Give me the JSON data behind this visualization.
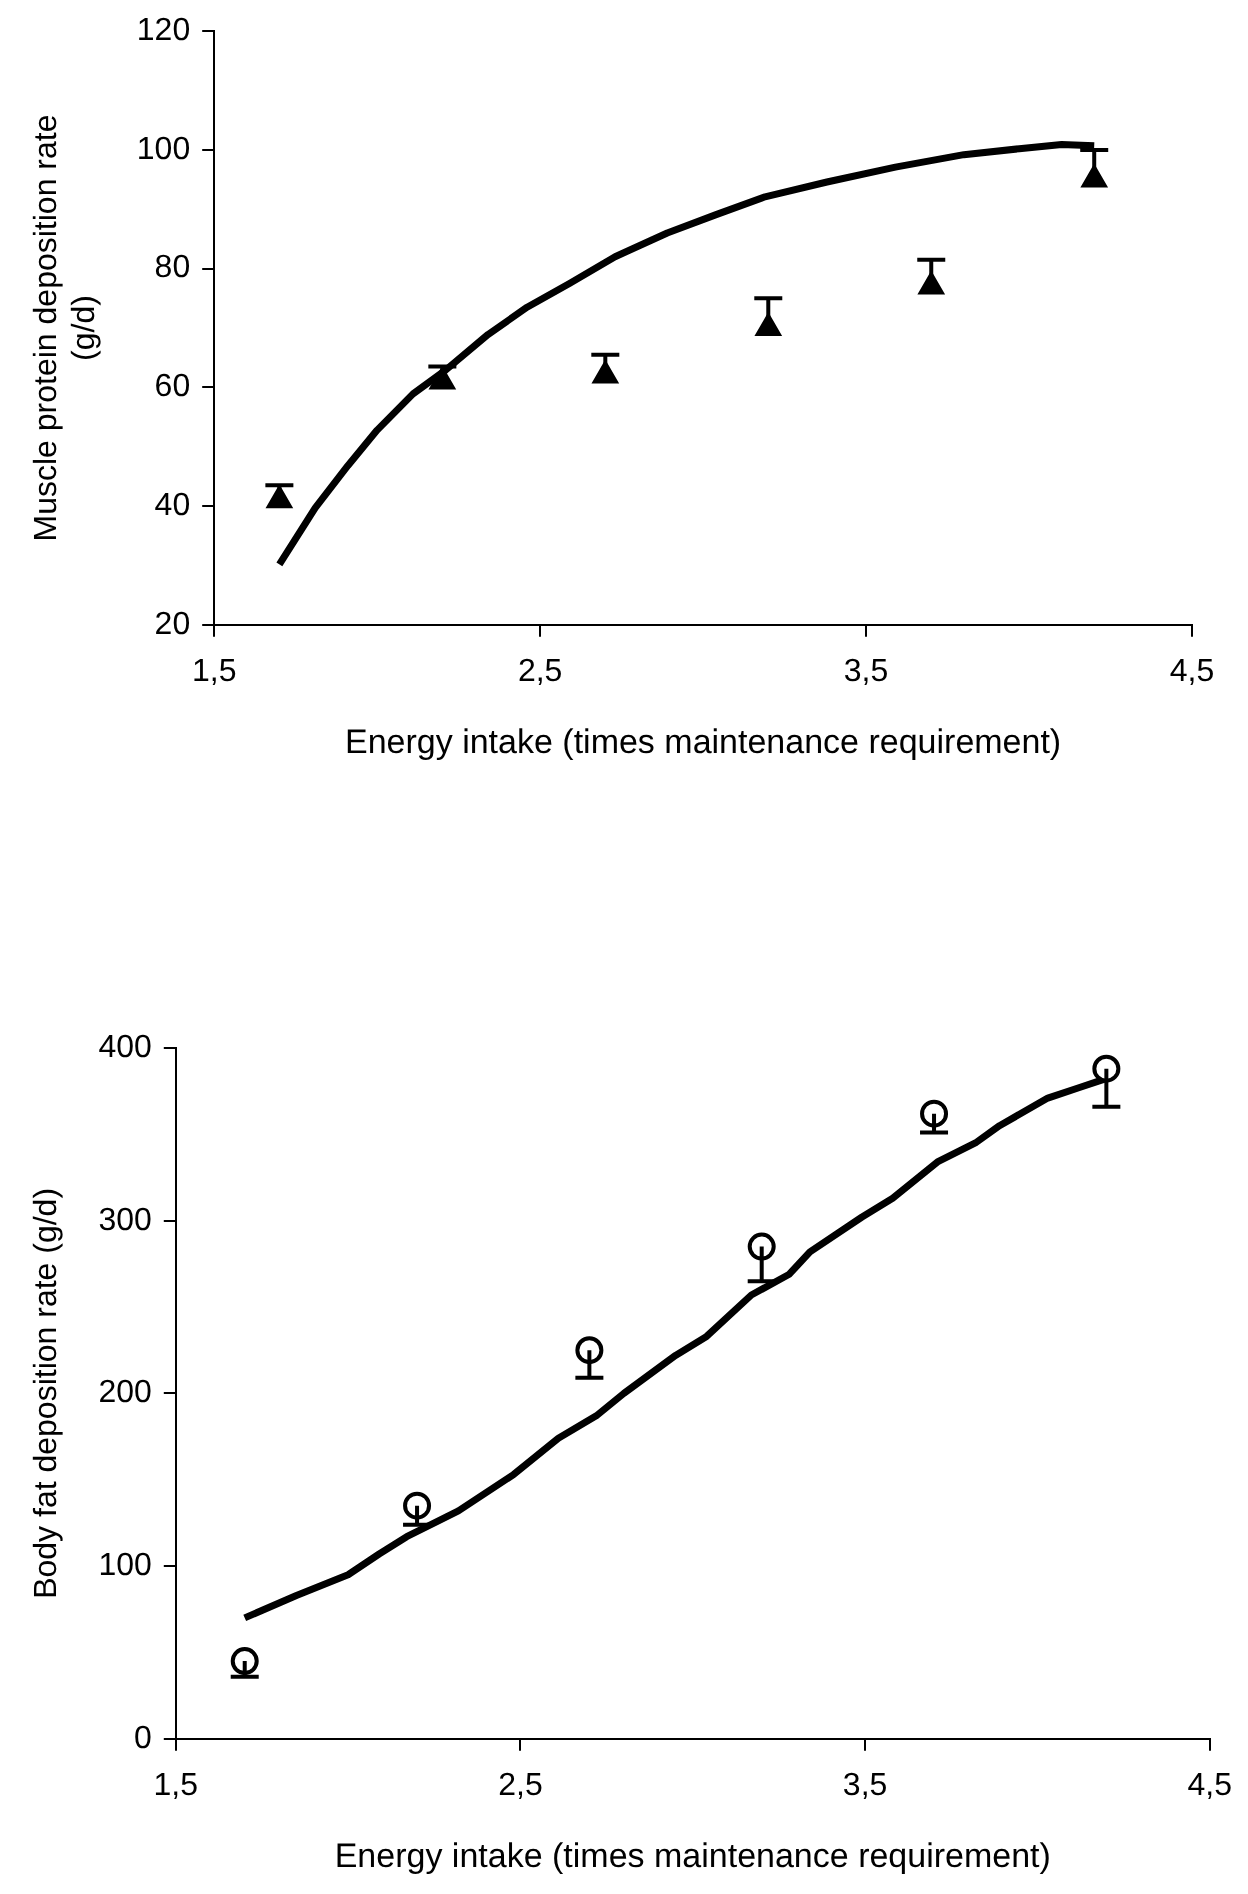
{
  "chart_data": [
    {
      "type": "line",
      "xlabel": "Energy intake (times maintenance requirement)",
      "ylabel": "Muscle protein deposition rate\n(g/d)",
      "xlim": [
        1.5,
        4.5
      ],
      "xticks": [
        {
          "value": 1.5,
          "label": "1,5"
        },
        {
          "value": 2.5,
          "label": "2,5"
        },
        {
          "value": 3.5,
          "label": "3,5"
        },
        {
          "value": 4.5,
          "label": "4,5"
        }
      ],
      "ylim": [
        20,
        120
      ],
      "yticks": [
        20,
        40,
        60,
        80,
        100,
        120
      ],
      "grid": false,
      "legend": false,
      "series": [
        {
          "type": "line",
          "color": "#000000",
          "marker": "none",
          "x": [
            1.7,
            1.81,
            1.91,
            2.0,
            2.11,
            2.21,
            2.34,
            2.46,
            2.59,
            2.73,
            2.89,
            3.04,
            3.19,
            3.38,
            3.59,
            3.8,
            3.97,
            4.1,
            4.2
          ],
          "values": [
            30.2,
            39.7,
            46.8,
            52.8,
            58.9,
            62.9,
            68.9,
            73.5,
            77.5,
            82.0,
            86.0,
            89.1,
            92.1,
            94.6,
            97.1,
            99.2,
            100.2,
            100.9,
            100.7
          ]
        },
        {
          "type": "scatter",
          "color": "#000000",
          "marker": "triangle",
          "x": [
            1.7,
            2.2,
            2.7,
            3.2,
            3.7,
            4.2
          ],
          "values": [
            41,
            61,
            62,
            70,
            77,
            95
          ],
          "errors": [
            [
              41,
              43.5
            ],
            [
              61,
              63.5
            ],
            [
              62,
              65.5
            ],
            [
              70,
              75
            ],
            [
              77,
              81.5
            ],
            [
              95,
              100
            ]
          ]
        }
      ]
    },
    {
      "type": "line",
      "xlabel": "Energy intake (times maintenance requirement)",
      "ylabel": "Body fat deposition rate (g/d)",
      "xlim": [
        1.5,
        4.5
      ],
      "xticks": [
        {
          "value": 1.5,
          "label": "1,5"
        },
        {
          "value": 2.5,
          "label": "2,5"
        },
        {
          "value": 3.5,
          "label": "3,5"
        },
        {
          "value": 4.5,
          "label": "4,5"
        }
      ],
      "ylim": [
        0,
        400
      ],
      "yticks": [
        0,
        100,
        200,
        300,
        400
      ],
      "grid": false,
      "legend": false,
      "series": [
        {
          "type": "line",
          "color": "#000000",
          "marker": "none",
          "x": [
            1.7,
            1.85,
            2.0,
            2.09,
            2.17,
            2.32,
            2.48,
            2.61,
            2.72,
            2.8,
            2.95,
            3.04,
            3.17,
            3.28,
            3.34,
            3.49,
            3.58,
            3.71,
            3.82,
            3.89,
            4.03,
            4.12,
            4.21
          ],
          "values": [
            70,
            83,
            95,
            107,
            117,
            132,
            153,
            174,
            187,
            200,
            222,
            233,
            257,
            269,
            282,
            302,
            313,
            334,
            345,
            355,
            371,
            377,
            383
          ]
        },
        {
          "type": "scatter",
          "color": "#000000",
          "marker": "circle",
          "x": [
            1.7,
            2.2,
            2.7,
            3.2,
            3.7,
            4.2
          ],
          "values": [
            45,
            135,
            225,
            285,
            362,
            388
          ],
          "errors": [
            [
              36,
              45
            ],
            [
              124,
              135
            ],
            [
              209,
              225
            ],
            [
              265,
              285
            ],
            [
              351,
              362
            ],
            [
              366,
              388
            ]
          ]
        }
      ]
    }
  ]
}
